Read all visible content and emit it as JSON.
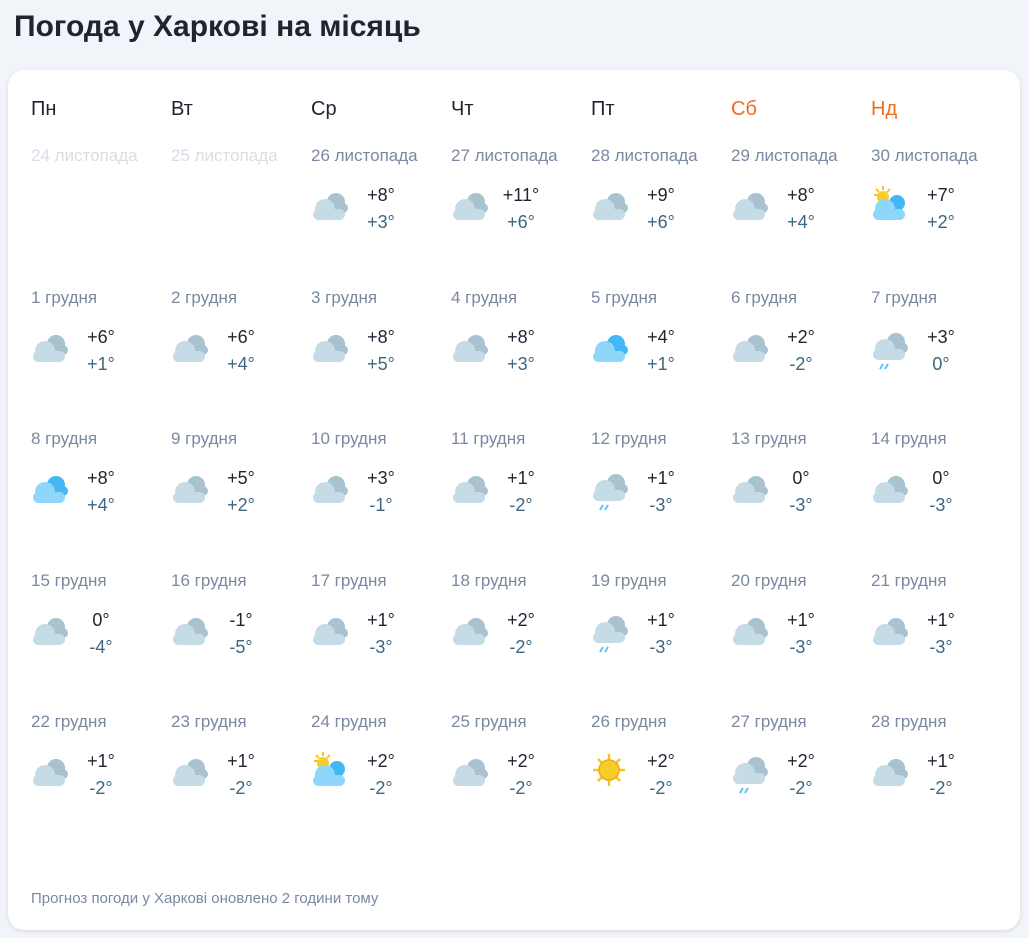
{
  "title": "Погода у Харкові на місяць",
  "weekdays": [
    {
      "label": "Пн",
      "weekend": false
    },
    {
      "label": "Вт",
      "weekend": false
    },
    {
      "label": "Ср",
      "weekend": false
    },
    {
      "label": "Чт",
      "weekend": false
    },
    {
      "label": "Пт",
      "weekend": false
    },
    {
      "label": "Сб",
      "weekend": true
    },
    {
      "label": "Нд",
      "weekend": true
    }
  ],
  "colors": {
    "weekend": "#f26b1d",
    "date": "#7a88a0",
    "low": "#3d6680"
  },
  "days": [
    [
      {
        "date": "24 листопада",
        "faded": true
      },
      {
        "date": "25 листопада",
        "faded": true
      },
      {
        "date": "26 листопада",
        "icon": "cloudy-icon",
        "hi": "+8°",
        "lo": "+3°"
      },
      {
        "date": "27 листопада",
        "icon": "cloudy-icon",
        "hi": "+11°",
        "lo": "+6°"
      },
      {
        "date": "28 листопада",
        "icon": "cloudy-icon",
        "hi": "+9°",
        "lo": "+6°"
      },
      {
        "date": "29 листопада",
        "icon": "cloudy-icon",
        "hi": "+8°",
        "lo": "+4°"
      },
      {
        "date": "30 листопада",
        "icon": "partly-sunny-icon",
        "hi": "+7°",
        "lo": "+2°"
      }
    ],
    [
      {
        "date": "1 грудня",
        "icon": "cloudy-icon",
        "hi": "+6°",
        "lo": "+1°"
      },
      {
        "date": "2 грудня",
        "icon": "cloudy-icon",
        "hi": "+6°",
        "lo": "+4°"
      },
      {
        "date": "3 грудня",
        "icon": "cloudy-icon",
        "hi": "+8°",
        "lo": "+5°"
      },
      {
        "date": "4 грудня",
        "icon": "cloudy-icon",
        "hi": "+8°",
        "lo": "+3°"
      },
      {
        "date": "5 грудня",
        "icon": "blue-cloud-icon",
        "hi": "+4°",
        "lo": "+1°"
      },
      {
        "date": "6 грудня",
        "icon": "cloudy-icon",
        "hi": "+2°",
        "lo": "-2°"
      },
      {
        "date": "7 грудня",
        "icon": "rain-icon",
        "hi": "+3°",
        "lo": "0°"
      }
    ],
    [
      {
        "date": "8 грудня",
        "icon": "blue-cloud-icon",
        "hi": "+8°",
        "lo": "+4°"
      },
      {
        "date": "9 грудня",
        "icon": "cloudy-icon",
        "hi": "+5°",
        "lo": "+2°"
      },
      {
        "date": "10 грудня",
        "icon": "cloudy-icon",
        "hi": "+3°",
        "lo": "-1°"
      },
      {
        "date": "11 грудня",
        "icon": "cloudy-icon",
        "hi": "+1°",
        "lo": "-2°"
      },
      {
        "date": "12 грудня",
        "icon": "rain-icon",
        "hi": "+1°",
        "lo": "-3°"
      },
      {
        "date": "13 грудня",
        "icon": "cloudy-icon",
        "hi": "0°",
        "lo": "-3°"
      },
      {
        "date": "14 грудня",
        "icon": "cloudy-icon",
        "hi": "0°",
        "lo": "-3°"
      }
    ],
    [
      {
        "date": "15 грудня",
        "icon": "cloudy-icon",
        "hi": "0°",
        "lo": "-4°"
      },
      {
        "date": "16 грудня",
        "icon": "cloudy-icon",
        "hi": "-1°",
        "lo": "-5°"
      },
      {
        "date": "17 грудня",
        "icon": "cloudy-icon",
        "hi": "+1°",
        "lo": "-3°"
      },
      {
        "date": "18 грудня",
        "icon": "cloudy-icon",
        "hi": "+2°",
        "lo": "-2°"
      },
      {
        "date": "19 грудня",
        "icon": "rain-icon",
        "hi": "+1°",
        "lo": "-3°"
      },
      {
        "date": "20 грудня",
        "icon": "cloudy-icon",
        "hi": "+1°",
        "lo": "-3°"
      },
      {
        "date": "21 грудня",
        "icon": "cloudy-icon",
        "hi": "+1°",
        "lo": "-3°"
      }
    ],
    [
      {
        "date": "22 грудня",
        "icon": "cloudy-icon",
        "hi": "+1°",
        "lo": "-2°"
      },
      {
        "date": "23 грудня",
        "icon": "cloudy-icon",
        "hi": "+1°",
        "lo": "-2°"
      },
      {
        "date": "24 грудня",
        "icon": "partly-sunny-icon",
        "hi": "+2°",
        "lo": "-2°"
      },
      {
        "date": "25 грудня",
        "icon": "cloudy-icon",
        "hi": "+2°",
        "lo": "-2°"
      },
      {
        "date": "26 грудня",
        "icon": "sun-icon",
        "hi": "+2°",
        "lo": "-2°"
      },
      {
        "date": "27 грудня",
        "icon": "rain-icon",
        "hi": "+2°",
        "lo": "-2°"
      },
      {
        "date": "28 грудня",
        "icon": "cloudy-icon",
        "hi": "+1°",
        "lo": "-2°"
      }
    ]
  ],
  "footer": "Прогноз погоди у Харкові оновлено 2 години тому"
}
